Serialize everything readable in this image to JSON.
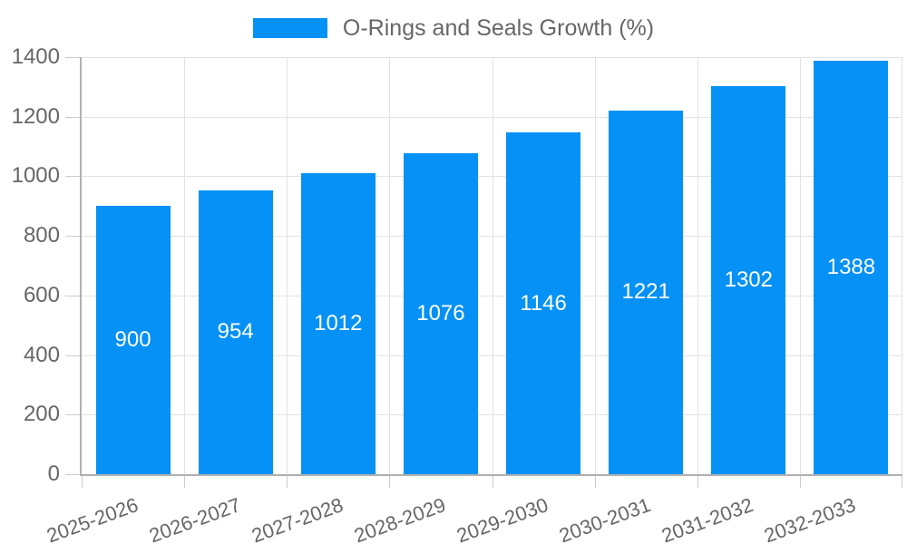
{
  "chart_data": {
    "type": "bar",
    "title": "",
    "series_name": "O-Rings and Seals Growth (%)",
    "categories": [
      "2025-2026",
      "2026-2027",
      "2027-2028",
      "2028-2029",
      "2029-2030",
      "2030-2031",
      "2031-2032",
      "2032-2033"
    ],
    "values": [
      900,
      954,
      1012,
      1076,
      1146,
      1221,
      1302,
      1388
    ],
    "xlabel": "",
    "ylabel": "",
    "ylim": [
      0,
      1400
    ],
    "ytick_step": 200,
    "yticks": [
      0,
      200,
      400,
      600,
      800,
      1000,
      1200,
      1400
    ],
    "grid": true,
    "legend_position": "top",
    "value_labels": "inside-center",
    "x_label_rotation_deg": -20,
    "colors": {
      "bar": "#0591f5",
      "value_label": "#ffffff",
      "axis_text": "#666666",
      "gridline": "#e2e2e2",
      "axis_line": "#b0b0b0",
      "background": "#ffffff"
    }
  }
}
